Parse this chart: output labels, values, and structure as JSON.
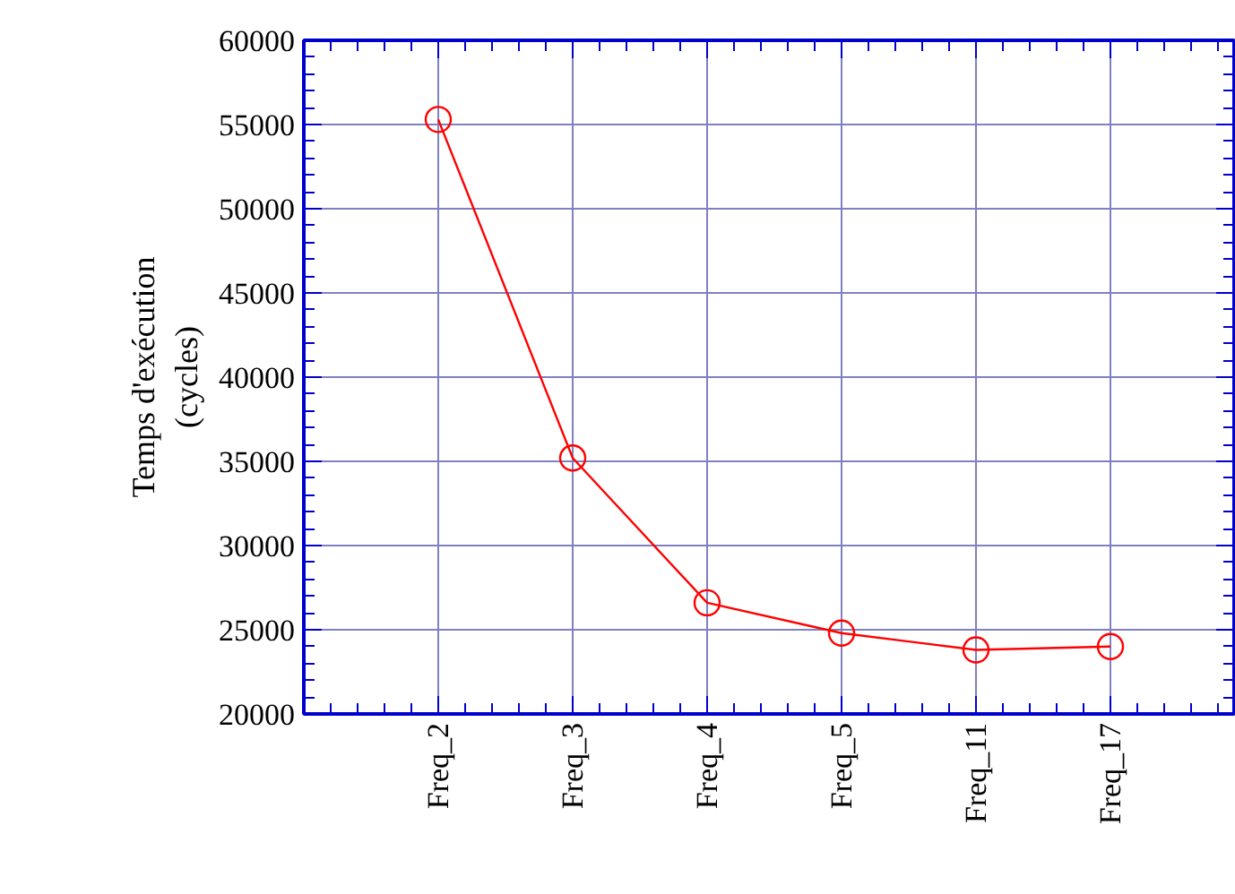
{
  "chart_data": {
    "type": "line",
    "categories": [
      "Freq_2",
      "Freq_3",
      "Freq_4",
      "Freq_5",
      "Freq_11",
      "Freq_17"
    ],
    "series": [
      {
        "color": "#ff0000",
        "values": [
          55300,
          35200,
          26600,
          24800,
          23800,
          24000
        ]
      }
    ],
    "ylabel": "Temps d'exécution\n(cycles)",
    "ylim": [
      20000,
      60000
    ],
    "yticks": [
      20000,
      25000,
      30000,
      35000,
      40000,
      45000,
      50000,
      55000,
      60000
    ],
    "grid": true,
    "marker": "circle",
    "line_style": "solid"
  }
}
